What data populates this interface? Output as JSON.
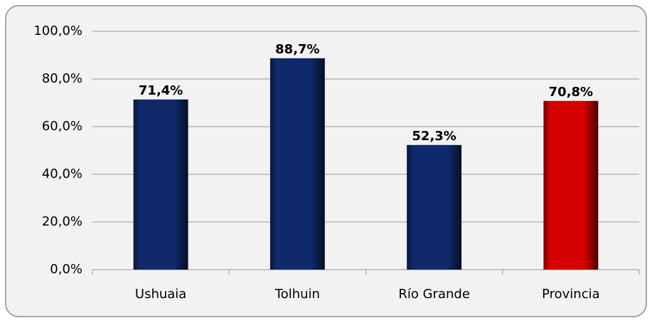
{
  "chart_data": {
    "type": "bar",
    "categories": [
      "Ushuaia",
      "Tolhuin",
      "Río Grande",
      "Provincia"
    ],
    "values": [
      71.4,
      88.7,
      52.3,
      70.8
    ],
    "value_labels": [
      "71,4%",
      "88,7%",
      "52,3%",
      "70,8%"
    ],
    "colors": [
      "#10296b",
      "#10296b",
      "#10296b",
      "#d40000"
    ],
    "ylim": [
      0,
      100
    ],
    "yticks": [
      {
        "value": 0,
        "label": "0,0%"
      },
      {
        "value": 20,
        "label": "20,0%"
      },
      {
        "value": 40,
        "label": "40,0%"
      },
      {
        "value": 60,
        "label": "60,0%"
      },
      {
        "value": 80,
        "label": "80,0%"
      },
      {
        "value": 100,
        "label": "100,0%"
      }
    ],
    "grid": true
  }
}
